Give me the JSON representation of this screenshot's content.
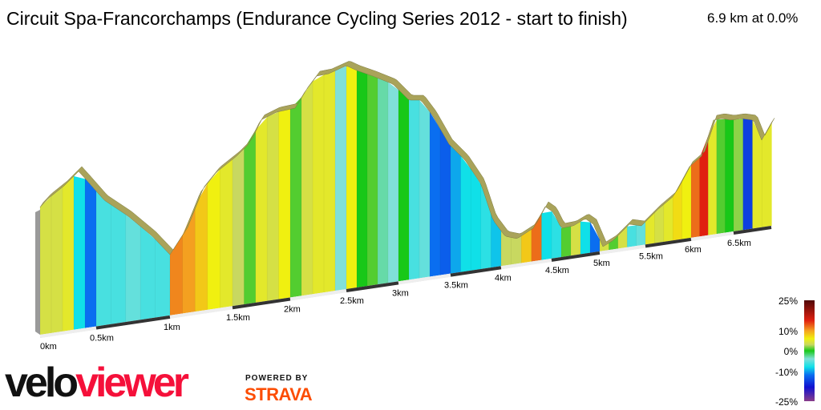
{
  "header": {
    "title": "Circuit Spa-Francorchamps (Endurance Cycling Series 2012 - start to finish)",
    "summary": "6.9 km at 0.0%"
  },
  "chart_data": {
    "type": "area",
    "title": "Circuit Spa-Francorchamps (Endurance Cycling Series 2012 - start to finish)",
    "total_distance_km": 6.9,
    "average_grade_pct": 0.0,
    "x_tick_labels": [
      "0km",
      "0.5km",
      "1km",
      "1.5km",
      "2km",
      "2.5km",
      "3km",
      "3.5km",
      "4km",
      "4.5km",
      "5km",
      "5.5km",
      "6km",
      "6.5km"
    ],
    "segment_length_km": 0.1,
    "grade_pct_by_segment": [
      4,
      4,
      5,
      -8,
      -12,
      -6,
      -6,
      -5,
      -6,
      -6,
      11,
      10,
      8,
      6,
      5,
      3,
      1,
      5,
      4,
      6,
      1,
      4,
      5,
      5,
      -4,
      6,
      0,
      1,
      -3,
      -4,
      0,
      -6,
      -5,
      -12,
      -13,
      -10,
      -8,
      -8,
      -7,
      -9,
      3,
      3,
      8,
      12,
      -8,
      -7,
      1,
      4,
      -8,
      -12,
      4,
      1,
      4,
      -6,
      -5,
      5,
      4,
      5,
      7,
      6,
      12,
      15,
      5,
      1,
      0,
      2,
      -15,
      5,
      5
    ],
    "color_legend": {
      "labels": [
        "25%",
        "10%",
        "0%",
        "-10%",
        "-25%"
      ],
      "range": [
        -25,
        25
      ],
      "stops": [
        {
          "grade": -25,
          "color": "#8a3d8a"
        },
        {
          "grade": -18,
          "color": "#1010d0"
        },
        {
          "grade": -12,
          "color": "#0a6ef0"
        },
        {
          "grade": -8,
          "color": "#10e0e8"
        },
        {
          "grade": -4,
          "color": "#80e0d8"
        },
        {
          "grade": 0,
          "color": "#18c818"
        },
        {
          "grade": 3,
          "color": "#c8d860"
        },
        {
          "grade": 6,
          "color": "#f0f010"
        },
        {
          "grade": 10,
          "color": "#f4a020"
        },
        {
          "grade": 15,
          "color": "#e02010"
        },
        {
          "grade": 25,
          "color": "#500808"
        }
      ]
    }
  },
  "branding": {
    "logo_part1": "velo",
    "logo_part2": "viewer",
    "powered_by": "POWERED BY",
    "strava": "STRAVA"
  }
}
